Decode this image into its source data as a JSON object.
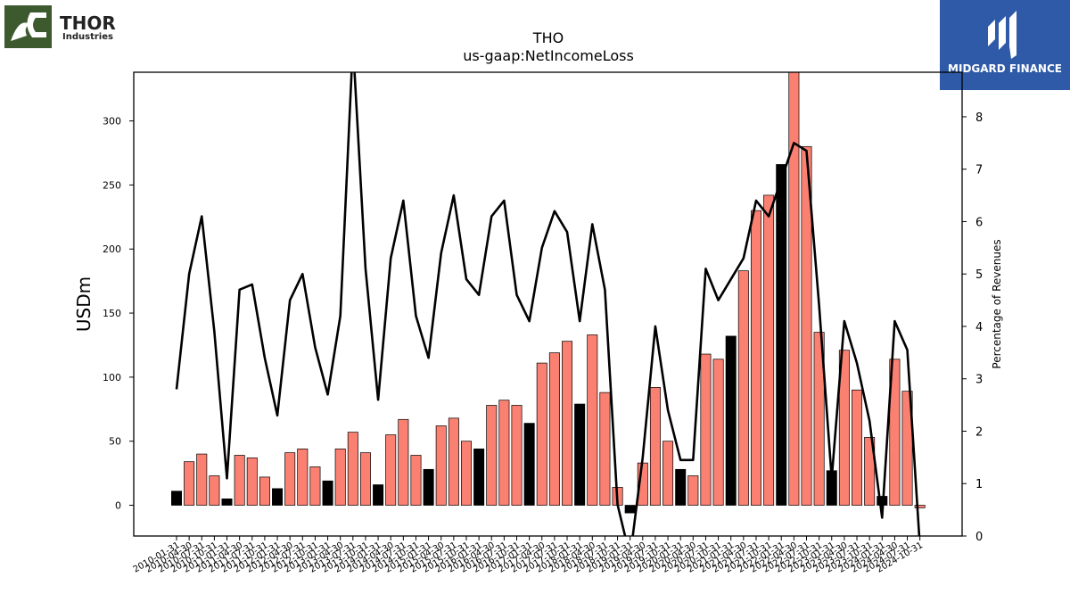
{
  "branding": {
    "left_logo_name": "THOR",
    "left_logo_sub": "Industries",
    "right_logo_name": "MIDGARD FINANCE"
  },
  "chart_data": {
    "type": "bar",
    "title": "THO",
    "subtitle": "us-gaap:NetIncomeLoss",
    "ylabel": "USDm",
    "y2label": "Percentage of Revenues",
    "ylim": [
      -24,
      338
    ],
    "y2lim": [
      0,
      8.85
    ],
    "yticks": [
      0,
      50,
      100,
      150,
      200,
      250,
      300
    ],
    "y2ticks": [
      0,
      1,
      2,
      3,
      4,
      5,
      6,
      7,
      8
    ],
    "grid": false,
    "colors": {
      "quarter_bar": "#fa8072",
      "annual_bar": "#000000",
      "line": "#000000"
    },
    "x_tick_labels": [
      "2010-01-31",
      "2010-04-30",
      "2010-07-31",
      "2010-10-31",
      "2011-01-31",
      "2011-04-30",
      "2011-07-31",
      "2011-10-31",
      "2012-01-31",
      "2012-04-30",
      "2012-07-31",
      "2012-10-31",
      "2013-01-31",
      "2013-04-30",
      "2013-07-31",
      "2013-10-31",
      "2014-01-31",
      "2014-04-30",
      "2014-07-31",
      "2014-10-31",
      "2015-01-31",
      "2015-04-30",
      "2015-07-31",
      "2015-10-31",
      "2016-01-31",
      "2016-04-30",
      "2016-07-31",
      "2016-10-31",
      "2017-01-31",
      "2017-04-30",
      "2017-07-31",
      "2017-10-31",
      "2018-01-31",
      "2018-04-30",
      "2018-07-31",
      "2018-10-31",
      "2019-01-31",
      "2019-04-30",
      "2019-07-31",
      "2019-10-31",
      "2020-01-31",
      "2020-04-30",
      "2020-07-31",
      "2020-10-31",
      "2021-01-31",
      "2021-04-30",
      "2021-07-31",
      "2021-10-31",
      "2022-01-31",
      "2022-04-30",
      "2022-07-31",
      "2022-10-31",
      "2023-01-31",
      "2023-04-30",
      "2023-07-31",
      "2023-10-31",
      "2024-01-31",
      "2024-04-30",
      "2024-07-31",
      "2024-10-31"
    ],
    "values": [
      11,
      34,
      40,
      23,
      5,
      39,
      37,
      22,
      13,
      41,
      44,
      30,
      19,
      44,
      57,
      41,
      16,
      55,
      67,
      39,
      28,
      62,
      68,
      50,
      44,
      78,
      82,
      78,
      64,
      111,
      119,
      128,
      79,
      133,
      88,
      14,
      -6,
      33,
      92,
      50,
      28,
      23,
      118,
      114,
      132,
      183,
      230,
      242,
      266,
      338,
      280,
      135,
      27,
      121,
      90,
      53,
      7,
      114,
      89,
      -2
    ],
    "bar_kind": [
      "annual",
      "quarter",
      "quarter",
      "quarter",
      "annual",
      "quarter",
      "quarter",
      "quarter",
      "annual",
      "quarter",
      "quarter",
      "quarter",
      "annual",
      "quarter",
      "quarter",
      "quarter",
      "annual",
      "quarter",
      "quarter",
      "quarter",
      "annual",
      "quarter",
      "quarter",
      "quarter",
      "annual",
      "quarter",
      "quarter",
      "quarter",
      "annual",
      "quarter",
      "quarter",
      "quarter",
      "annual",
      "quarter",
      "quarter",
      "quarter",
      "annual",
      "quarter",
      "quarter",
      "quarter",
      "annual",
      "quarter",
      "quarter",
      "quarter",
      "annual",
      "quarter",
      "quarter",
      "quarter",
      "annual",
      "quarter",
      "quarter",
      "quarter",
      "annual",
      "quarter",
      "quarter",
      "quarter",
      "annual",
      "quarter",
      "quarter",
      "quarter"
    ],
    "line_values": [
      2.8,
      5.0,
      6.1,
      3.9,
      1.1,
      4.7,
      4.8,
      3.4,
      2.3,
      4.5,
      5.0,
      3.6,
      2.7,
      4.2,
      9.4,
      5.1,
      2.6,
      5.3,
      6.4,
      4.2,
      3.4,
      5.4,
      6.5,
      4.9,
      4.6,
      6.1,
      6.4,
      4.6,
      4.1,
      5.5,
      6.2,
      5.8,
      4.1,
      5.95,
      4.7,
      0.6,
      -0.4,
      1.5,
      4.0,
      2.4,
      1.45,
      1.45,
      5.1,
      4.5,
      4.9,
      5.3,
      6.4,
      6.1,
      6.8,
      7.5,
      7.35,
      4.4,
      1.1,
      4.1,
      3.3,
      2.2,
      0.35,
      4.1,
      3.55,
      -0.2
    ]
  }
}
